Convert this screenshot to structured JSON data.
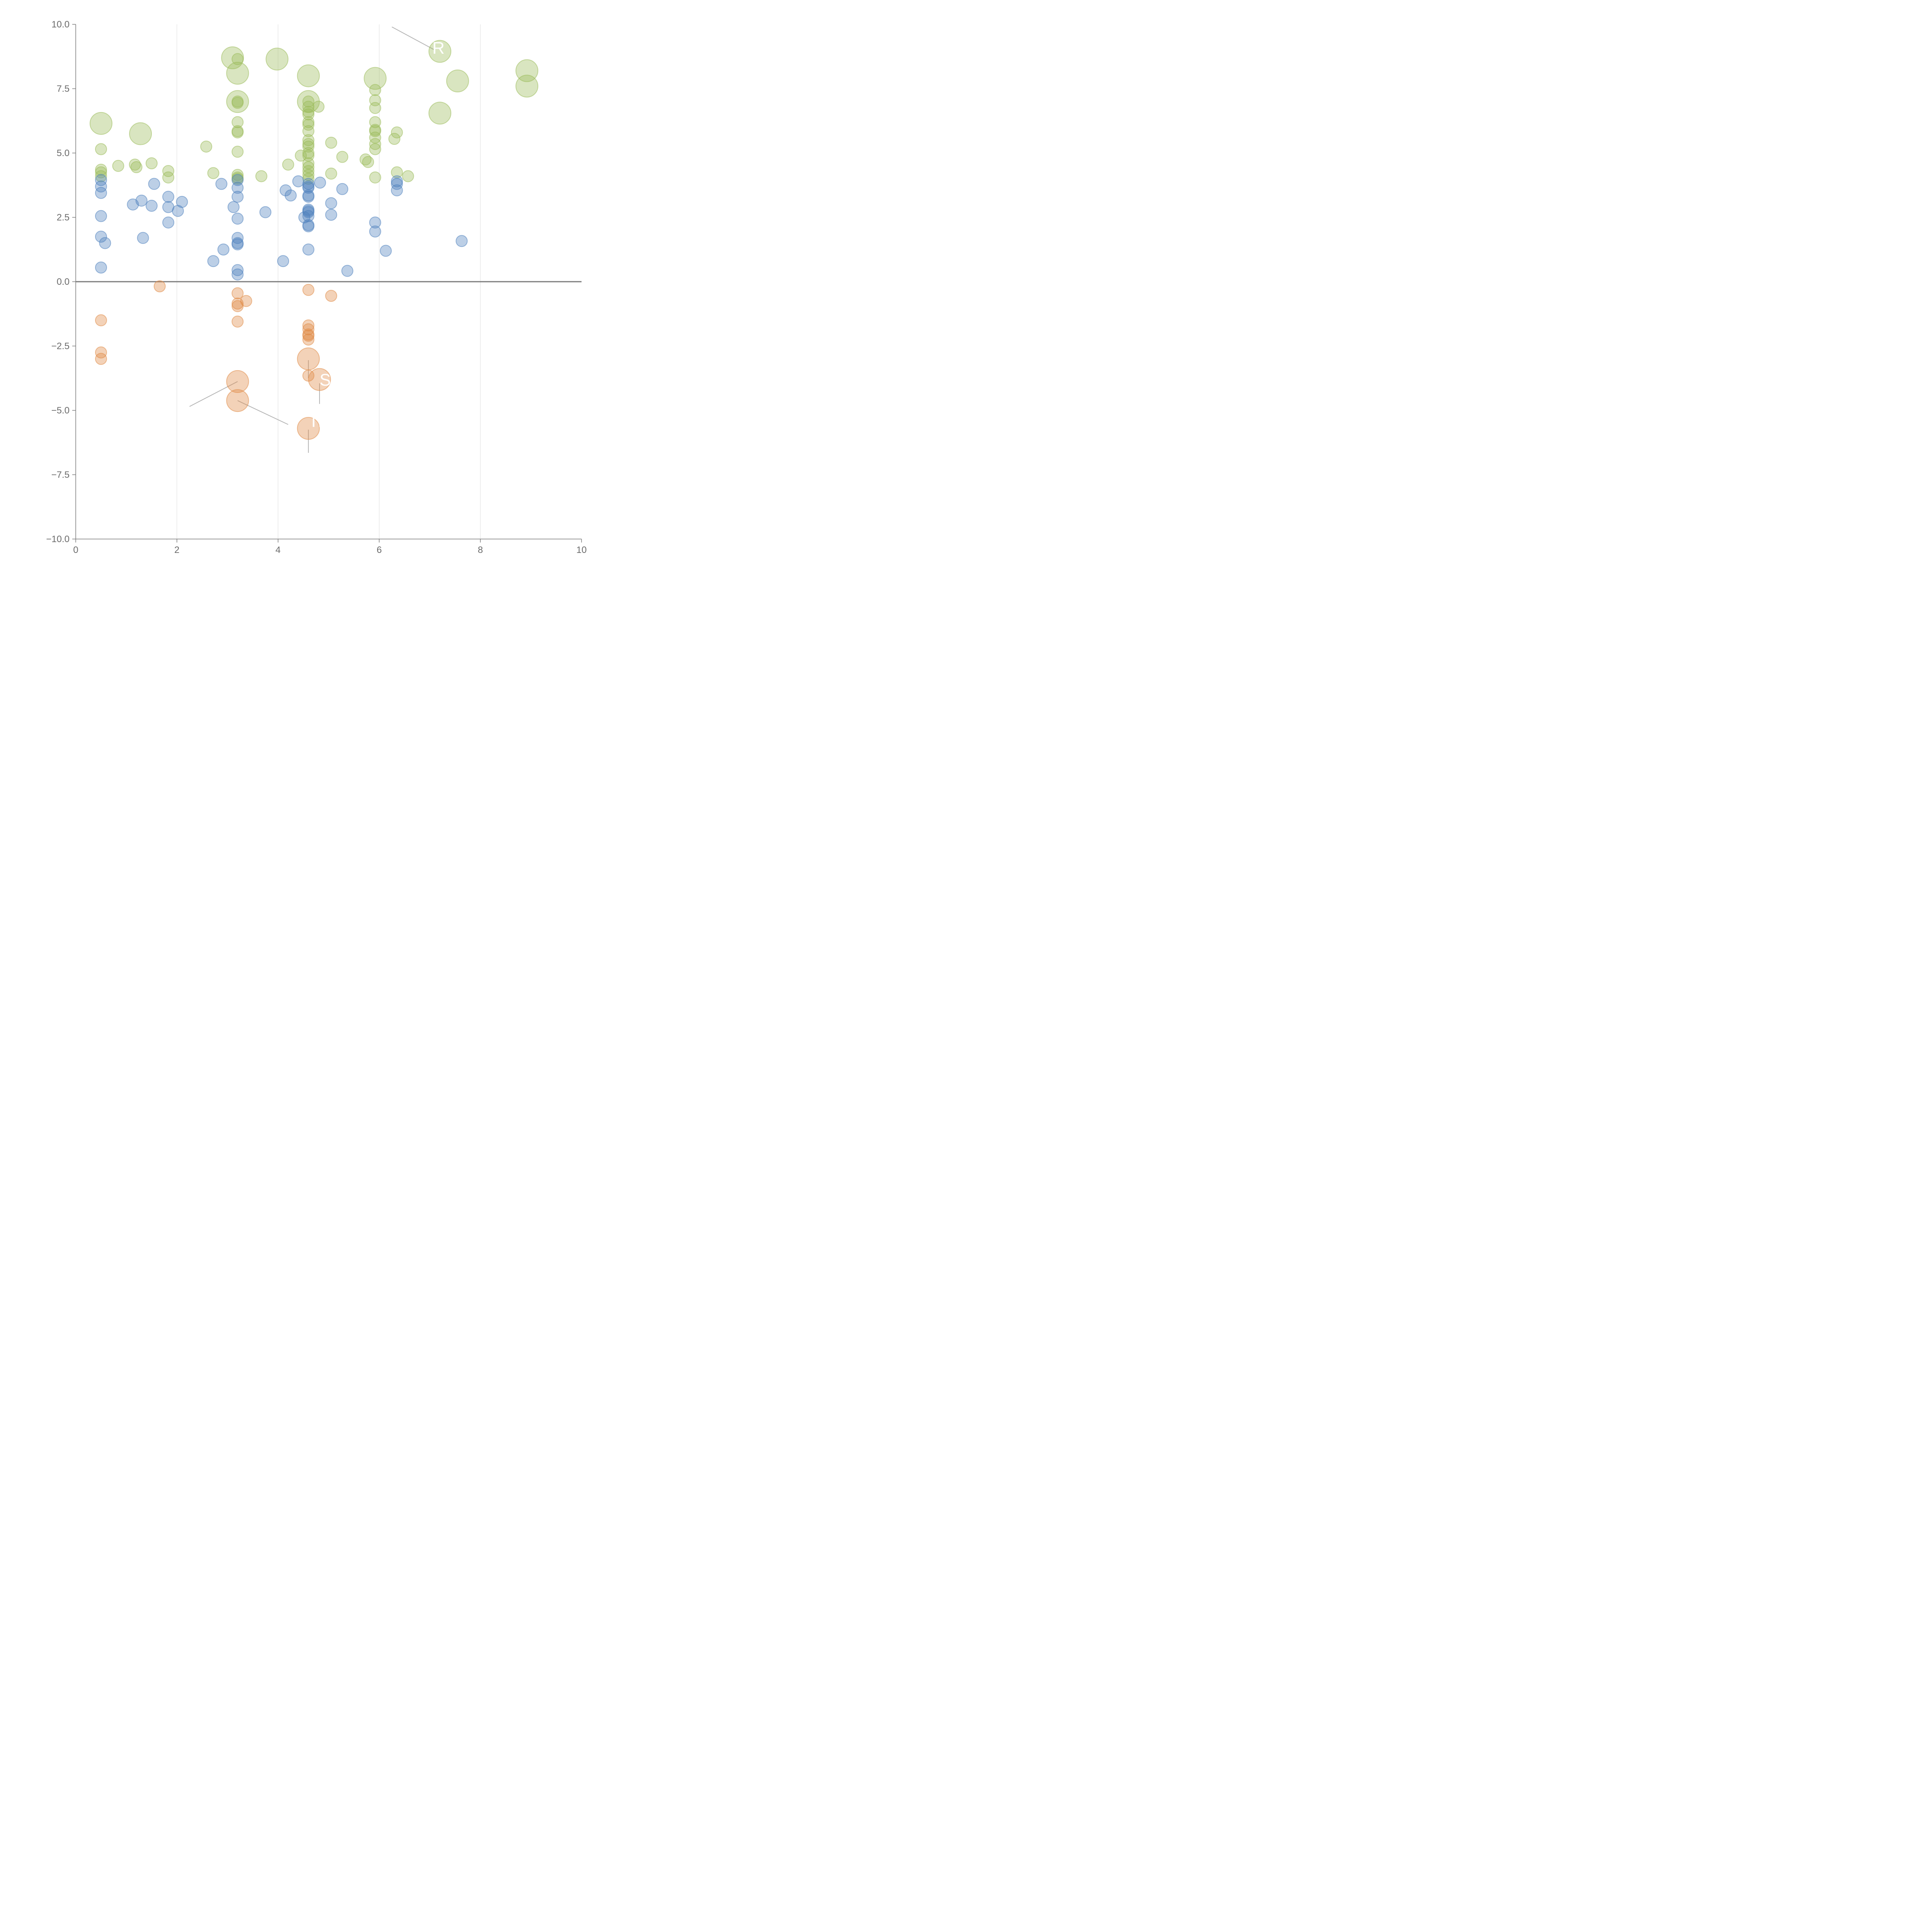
{
  "chart_data": {
    "type": "scatter",
    "title": "",
    "xlabel": "",
    "ylabel": "",
    "xlim": [
      0,
      10
    ],
    "ylim": [
      -10,
      10
    ],
    "x_ticks": [
      "0",
      "2",
      "4",
      "6",
      "8",
      "10"
    ],
    "y_ticks": [
      "10.0",
      "7.5",
      "5.0",
      "2.5",
      "0.0",
      "−2.5",
      "−5.0",
      "−7.5",
      "−10.0"
    ],
    "grid": "vertical",
    "colors": {
      "green": "#9bbb59",
      "blue": "#4f81bd",
      "orange": "#e08a45"
    },
    "series": [
      {
        "color": "green",
        "points": [
          [
            0.5,
            6.15,
            2
          ],
          [
            1.28,
            5.75,
            2
          ],
          [
            3.1,
            8.7,
            2
          ],
          [
            3.2,
            8.1,
            2
          ],
          [
            3.2,
            7.0,
            2
          ],
          [
            3.98,
            8.65,
            2
          ],
          [
            4.6,
            8.0,
            2
          ],
          [
            4.6,
            7.0,
            2
          ],
          [
            5.92,
            7.9,
            2
          ],
          [
            7.2,
            8.95,
            2
          ],
          [
            7.55,
            7.8,
            2
          ],
          [
            8.92,
            8.2,
            2
          ],
          [
            8.92,
            7.6,
            2
          ],
          [
            7.2,
            6.55,
            2
          ],
          [
            0.5,
            5.15,
            1
          ],
          [
            0.5,
            4.35,
            1
          ],
          [
            0.5,
            4.25,
            1
          ],
          [
            0.5,
            4.1,
            1
          ],
          [
            0.84,
            4.5,
            1
          ],
          [
            1.17,
            4.55,
            1
          ],
          [
            1.2,
            4.45,
            1
          ],
          [
            1.5,
            4.6,
            1
          ],
          [
            1.83,
            4.3,
            1
          ],
          [
            1.83,
            4.05,
            1
          ],
          [
            2.58,
            5.25,
            1
          ],
          [
            2.72,
            4.22,
            1
          ],
          [
            3.2,
            8.65,
            1
          ],
          [
            3.2,
            7.0,
            1
          ],
          [
            3.2,
            6.95,
            1
          ],
          [
            3.2,
            6.2,
            1
          ],
          [
            3.2,
            5.85,
            1
          ],
          [
            3.2,
            5.8,
            1
          ],
          [
            3.2,
            5.05,
            1
          ],
          [
            3.2,
            4.15,
            1
          ],
          [
            3.2,
            4.05,
            1
          ],
          [
            3.2,
            4.0,
            1
          ],
          [
            3.67,
            4.1,
            1
          ],
          [
            4.2,
            4.55,
            1
          ],
          [
            4.45,
            4.9,
            1
          ],
          [
            4.6,
            7.0,
            1
          ],
          [
            4.6,
            6.8,
            1
          ],
          [
            4.6,
            6.6,
            1
          ],
          [
            4.6,
            6.5,
            1
          ],
          [
            4.6,
            6.2,
            1
          ],
          [
            4.6,
            6.1,
            1
          ],
          [
            4.6,
            5.85,
            1
          ],
          [
            4.6,
            5.5,
            1
          ],
          [
            4.6,
            5.35,
            1
          ],
          [
            4.6,
            5.25,
            1
          ],
          [
            4.6,
            5.0,
            1
          ],
          [
            4.6,
            4.9,
            1
          ],
          [
            4.6,
            4.6,
            1
          ],
          [
            4.6,
            4.45,
            1
          ],
          [
            4.6,
            4.3,
            1
          ],
          [
            4.6,
            4.15,
            1
          ],
          [
            4.6,
            4.0,
            1
          ],
          [
            4.8,
            6.8,
            1
          ],
          [
            5.05,
            5.4,
            1
          ],
          [
            5.05,
            4.2,
            1
          ],
          [
            5.27,
            4.85,
            1
          ],
          [
            5.73,
            4.75,
            1
          ],
          [
            5.78,
            4.65,
            1
          ],
          [
            5.92,
            7.45,
            1
          ],
          [
            5.92,
            7.05,
            1
          ],
          [
            5.92,
            6.75,
            1
          ],
          [
            5.92,
            6.2,
            1
          ],
          [
            5.92,
            5.9,
            1
          ],
          [
            5.92,
            5.85,
            1
          ],
          [
            5.92,
            5.6,
            1
          ],
          [
            5.92,
            5.35,
            1
          ],
          [
            5.92,
            5.15,
            1
          ],
          [
            5.92,
            4.05,
            1
          ],
          [
            6.3,
            5.55,
            1
          ],
          [
            6.35,
            5.8,
            1
          ],
          [
            6.35,
            4.25,
            1
          ],
          [
            6.57,
            4.1,
            1
          ]
        ]
      },
      {
        "color": "blue",
        "points": [
          [
            0.5,
            3.95,
            1
          ],
          [
            0.5,
            3.7,
            1
          ],
          [
            0.5,
            3.45,
            1
          ],
          [
            0.5,
            2.55,
            1
          ],
          [
            0.5,
            1.75,
            1
          ],
          [
            0.58,
            1.5,
            1
          ],
          [
            0.5,
            0.55,
            1
          ],
          [
            1.13,
            3.0,
            1
          ],
          [
            1.3,
            3.15,
            1
          ],
          [
            1.5,
            2.95,
            1
          ],
          [
            1.55,
            3.8,
            1
          ],
          [
            1.33,
            1.7,
            1
          ],
          [
            1.83,
            3.3,
            1
          ],
          [
            1.83,
            2.9,
            1
          ],
          [
            1.83,
            2.3,
            1
          ],
          [
            2.02,
            2.75,
            1
          ],
          [
            2.1,
            3.1,
            1
          ],
          [
            2.72,
            0.8,
            1
          ],
          [
            2.88,
            3.8,
            1
          ],
          [
            2.92,
            1.25,
            1
          ],
          [
            3.12,
            2.9,
            1
          ],
          [
            3.2,
            3.95,
            1
          ],
          [
            3.2,
            3.65,
            1
          ],
          [
            3.2,
            3.3,
            1
          ],
          [
            3.2,
            2.45,
            1
          ],
          [
            3.2,
            1.7,
            1
          ],
          [
            3.2,
            1.5,
            1
          ],
          [
            3.2,
            1.45,
            1
          ],
          [
            3.2,
            0.45,
            1
          ],
          [
            3.2,
            0.28,
            1
          ],
          [
            3.75,
            2.7,
            1
          ],
          [
            4.1,
            0.8,
            1
          ],
          [
            4.15,
            3.55,
            1
          ],
          [
            4.25,
            3.35,
            1
          ],
          [
            4.4,
            3.9,
            1
          ],
          [
            4.52,
            2.5,
            1
          ],
          [
            4.6,
            3.8,
            1
          ],
          [
            4.6,
            3.7,
            1
          ],
          [
            4.6,
            3.65,
            1
          ],
          [
            4.6,
            3.35,
            1
          ],
          [
            4.6,
            3.3,
            1
          ],
          [
            4.6,
            2.8,
            1
          ],
          [
            4.6,
            2.75,
            1
          ],
          [
            4.6,
            2.7,
            1
          ],
          [
            4.6,
            2.55,
            1
          ],
          [
            4.6,
            2.2,
            1
          ],
          [
            4.6,
            2.15,
            1
          ],
          [
            4.6,
            1.25,
            1
          ],
          [
            4.83,
            3.85,
            1
          ],
          [
            5.05,
            3.05,
            1
          ],
          [
            5.05,
            2.6,
            1
          ],
          [
            5.27,
            3.6,
            1
          ],
          [
            5.37,
            0.42,
            1
          ],
          [
            5.92,
            2.3,
            1
          ],
          [
            5.92,
            1.95,
            1
          ],
          [
            6.13,
            1.2,
            1
          ],
          [
            6.35,
            3.9,
            1
          ],
          [
            6.35,
            3.8,
            1
          ],
          [
            6.35,
            3.55,
            1
          ],
          [
            7.63,
            1.58,
            1
          ]
        ]
      },
      {
        "color": "orange",
        "points": [
          [
            1.66,
            -0.18,
            1
          ],
          [
            0.5,
            -1.5,
            1
          ],
          [
            0.5,
            -2.75,
            1
          ],
          [
            0.5,
            -3.0,
            1
          ],
          [
            3.2,
            -0.45,
            1
          ],
          [
            3.2,
            -0.85,
            1
          ],
          [
            3.2,
            -0.95,
            1
          ],
          [
            3.37,
            -0.75,
            1
          ],
          [
            3.2,
            -1.55,
            1
          ],
          [
            3.2,
            -3.88,
            2
          ],
          [
            3.2,
            -4.62,
            2
          ],
          [
            4.6,
            -0.32,
            1
          ],
          [
            4.6,
            -1.7,
            1
          ],
          [
            4.6,
            -1.85,
            1
          ],
          [
            4.6,
            -2.05,
            1
          ],
          [
            4.6,
            -2.1,
            1
          ],
          [
            4.6,
            -2.25,
            1
          ],
          [
            4.6,
            -3.0,
            2
          ],
          [
            4.6,
            -3.65,
            1
          ],
          [
            4.82,
            -3.8,
            2
          ],
          [
            4.6,
            -5.7,
            2
          ],
          [
            5.05,
            -0.55,
            1
          ]
        ]
      }
    ],
    "annotations": [
      {
        "text": "R",
        "x": 7.05,
        "y": 9.1
      },
      {
        "text": "SO",
        "x": 4.82,
        "y": -3.8
      },
      {
        "text": "Tr",
        "x": 4.6,
        "y": -5.4
      }
    ]
  }
}
